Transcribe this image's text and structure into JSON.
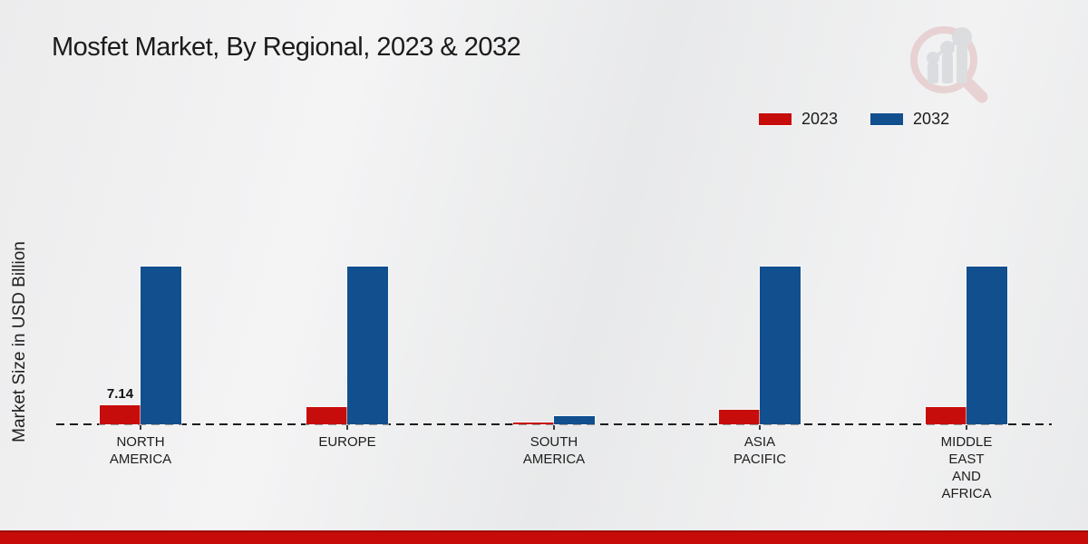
{
  "title": "Mosfet Market, By Regional, 2023 & 2032",
  "ylabel": "Market Size in USD Billion",
  "legend": [
    {
      "label": "2023",
      "color": "#c60d0b"
    },
    {
      "label": "2032",
      "color": "#124f8e"
    }
  ],
  "colors": {
    "bar_2023": "#c60d0b",
    "bar_2032": "#124f8e",
    "footer_strip": "#c60b09",
    "footer_edge": "#9b0f0d",
    "background": "#ededee",
    "text": "#1b1b1b"
  },
  "chart_data": {
    "type": "bar",
    "title": "Mosfet Market, By Regional, 2023 & 2032",
    "xlabel": "",
    "ylabel": "Market Size in USD Billion",
    "categories": [
      "NORTH AMERICA",
      "EUROPE",
      "SOUTH AMERICA",
      "ASIA PACIFIC",
      "MIDDLE EAST AND AFRICA"
    ],
    "category_lines": [
      [
        "NORTH",
        "AMERICA"
      ],
      [
        "EUROPE"
      ],
      [
        "SOUTH",
        "AMERICA"
      ],
      [
        "ASIA",
        "PACIFIC"
      ],
      [
        "MIDDLE",
        "EAST",
        "AND",
        "AFRICA"
      ]
    ],
    "series": [
      {
        "name": "2023",
        "color": "#c60d0b",
        "values": [
          7.14,
          6.3,
          0.4,
          5.2,
          6.4
        ]
      },
      {
        "name": "2032",
        "color": "#124f8e",
        "values": [
          58,
          58,
          3,
          58,
          58
        ]
      }
    ],
    "annotations": [
      {
        "series": "2023",
        "category_index": 0,
        "text": "7.14"
      }
    ],
    "ylim": [
      0,
      60
    ],
    "grid": false,
    "baseline_style": "dashed",
    "legend_position": "top-right"
  },
  "logo_name": "market-research-future-logo"
}
